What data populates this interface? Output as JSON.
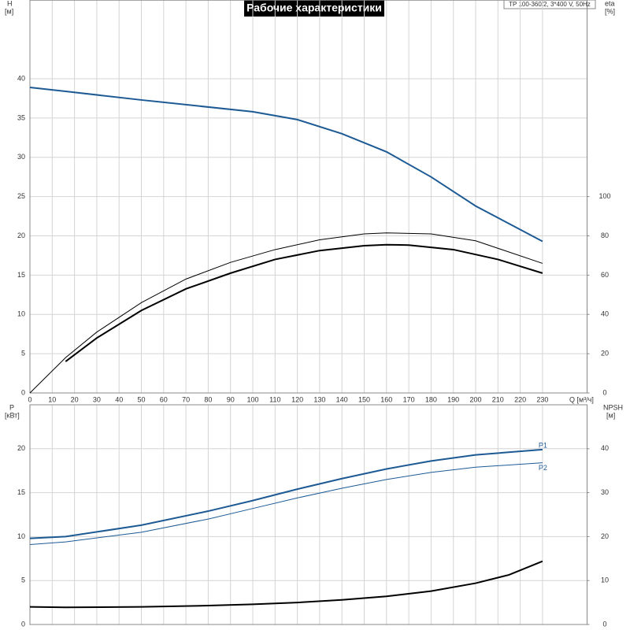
{
  "chart_data": [
    {
      "type": "line",
      "title": "Рабочие характеристики",
      "subtitle": "TP 100-360/2, 3*400 V, 50Hz",
      "y_label": "H",
      "y_unit": "[м]",
      "y2_label": "eta",
      "y2_unit": "[%]",
      "x_label": "Q [м³/ч]",
      "xlim": [
        0,
        250
      ],
      "xticks": [
        0,
        10,
        20,
        30,
        40,
        50,
        60,
        70,
        80,
        90,
        100,
        110,
        120,
        130,
        140,
        150,
        160,
        170,
        180,
        190,
        200,
        210,
        220,
        230
      ],
      "ylim": [
        0,
        50
      ],
      "yticks": [
        0,
        5,
        10,
        15,
        20,
        25,
        30,
        35,
        40
      ],
      "y2lim": [
        0,
        200
      ],
      "y2ticks": [
        0,
        20,
        40,
        60,
        80,
        100
      ],
      "grid": true,
      "series": [
        {
          "color": "#1d5a94",
          "width": 2,
          "x": [
            0,
            16,
            50,
            100,
            120,
            140,
            160,
            180,
            200,
            230
          ],
          "values": [
            38.9,
            38.4,
            37.3,
            35.8,
            34.8,
            33.0,
            30.7,
            27.5,
            23.8,
            19.3
          ]
        },
        {
          "color": "#000000",
          "width": 2,
          "axis": "y2",
          "x": [
            16,
            30,
            50,
            70,
            90,
            110,
            130,
            150,
            160,
            170,
            190,
            210,
            230
          ],
          "values": [
            16,
            28,
            42,
            53,
            61,
            68,
            72.5,
            75,
            75.5,
            75.3,
            73,
            68,
            61
          ]
        },
        {
          "color": "#000000",
          "width": 1,
          "axis": "y2",
          "x": [
            0,
            16,
            30,
            50,
            70,
            90,
            110,
            130,
            150,
            160,
            180,
            200,
            230
          ],
          "values": [
            0,
            18,
            31,
            46,
            58,
            66.5,
            73,
            78,
            81,
            81.5,
            81,
            77.5,
            66
          ]
        }
      ]
    },
    {
      "type": "line",
      "y_label": "P",
      "y_unit": "[кВт]",
      "y2_label": "NPSH",
      "y2_unit": "[м]",
      "xlim": [
        0,
        250
      ],
      "xticks": [
        0,
        10,
        20,
        30,
        40,
        50,
        60,
        70,
        80,
        90,
        100,
        110,
        120,
        130,
        140,
        150,
        160,
        170,
        180,
        190,
        200,
        210,
        220,
        230
      ],
      "ylim": [
        0,
        25
      ],
      "yticks": [
        0,
        5,
        10,
        15,
        20
      ],
      "y2lim": [
        0,
        50
      ],
      "y2ticks": [
        0,
        10,
        20,
        30,
        40
      ],
      "grid": true,
      "series": [
        {
          "name": "P1",
          "color": "#1d5a94",
          "width": 2,
          "x": [
            0,
            16,
            50,
            80,
            100,
            120,
            140,
            160,
            180,
            200,
            230
          ],
          "values": [
            9.8,
            10.0,
            11.3,
            12.9,
            14.1,
            15.4,
            16.6,
            17.7,
            18.6,
            19.3,
            19.9
          ]
        },
        {
          "name": "P2",
          "color": "#1d5a94",
          "width": 1,
          "x": [
            0,
            16,
            50,
            80,
            100,
            120,
            140,
            160,
            180,
            200,
            230
          ],
          "values": [
            9.1,
            9.4,
            10.5,
            12.0,
            13.2,
            14.4,
            15.5,
            16.5,
            17.3,
            17.9,
            18.4
          ]
        },
        {
          "color": "#000000",
          "width": 2,
          "axis": "y2",
          "x": [
            0,
            16,
            50,
            80,
            100,
            120,
            140,
            160,
            180,
            200,
            215,
            230
          ],
          "values": [
            4.0,
            3.9,
            4.0,
            4.3,
            4.6,
            5.0,
            5.6,
            6.4,
            7.6,
            9.4,
            11.3,
            14.4
          ]
        }
      ]
    }
  ]
}
